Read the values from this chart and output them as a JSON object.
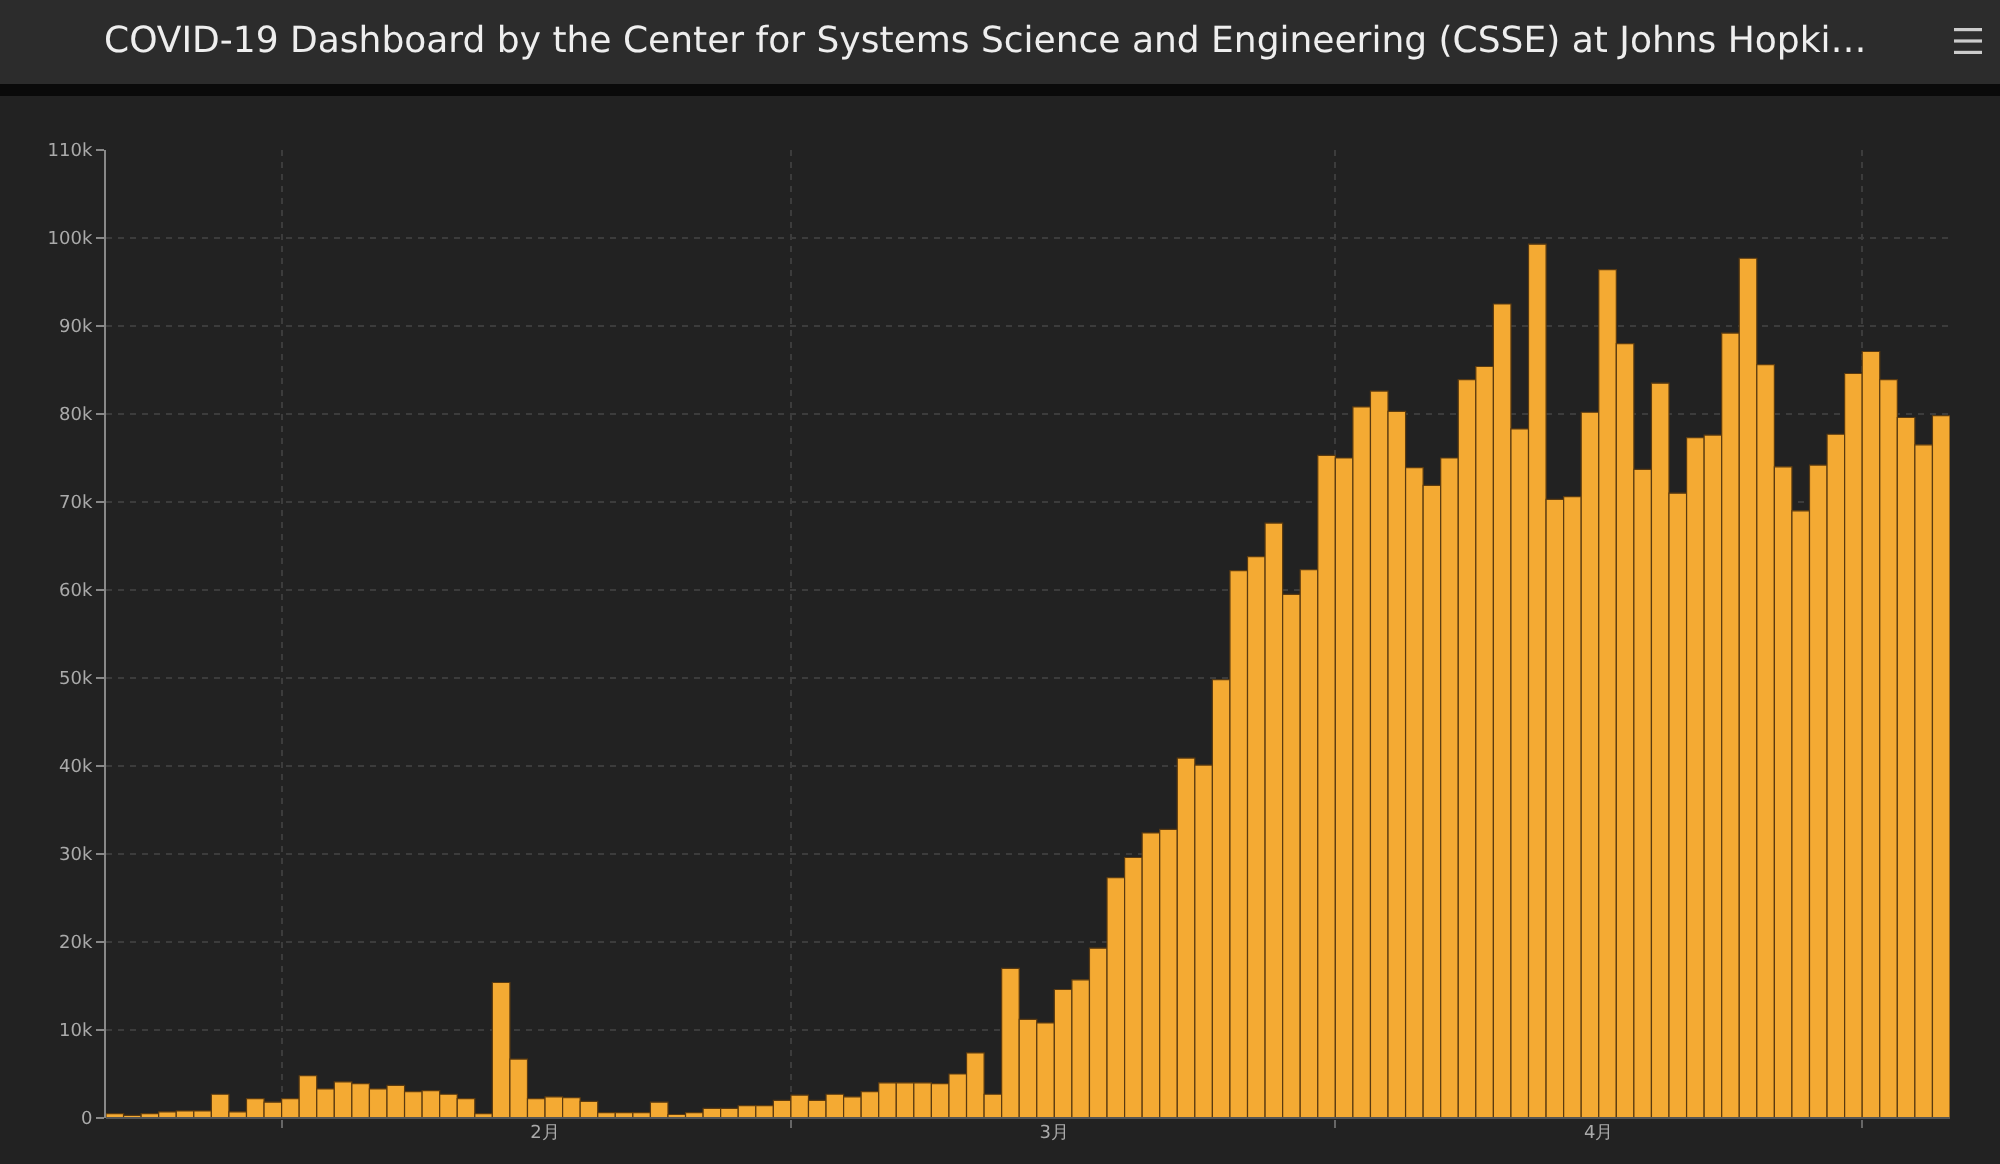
{
  "chart_data": {
    "type": "bar",
    "title": "COVID-19 Dashboard by the Center for Systems Science and Engineering (CSSE) at Johns Hopki…",
    "x": [
      "--01-22",
      "--01-23",
      "--01-24",
      "--01-25",
      "--01-26",
      "--01-27",
      "--01-28",
      "--01-29",
      "--01-30",
      "--01-31",
      "--02-01",
      "--02-02",
      "--02-03",
      "--02-04",
      "--02-05",
      "--02-06",
      "--02-07",
      "--02-08",
      "--02-09",
      "--02-10",
      "--02-11",
      "--02-12",
      "--02-13",
      "--02-14",
      "--02-15",
      "--02-16",
      "--02-17",
      "--02-18",
      "--02-19",
      "--02-20",
      "--02-21",
      "--02-22",
      "--02-23",
      "--02-24",
      "--02-25",
      "--02-26",
      "--02-27",
      "--02-28",
      "--02-29",
      "--03-01",
      "--03-02",
      "--03-03",
      "--03-04",
      "--03-05",
      "--03-06",
      "--03-07",
      "--03-08",
      "--03-09",
      "--03-10",
      "--03-11",
      "--03-12",
      "--03-13",
      "--03-14",
      "--03-15",
      "--03-16",
      "--03-17",
      "--03-18",
      "--03-19",
      "--03-20",
      "--03-21",
      "--03-22",
      "--03-23",
      "--03-24",
      "--03-25",
      "--03-26",
      "--03-27",
      "--03-28",
      "--03-29",
      "--03-30",
      "--03-31",
      "--04-01",
      "--04-02",
      "--04-03",
      "--04-04",
      "--04-05",
      "--04-06",
      "--04-07",
      "--04-08",
      "--04-09",
      "--04-10",
      "--04-11",
      "--04-12",
      "--04-13",
      "--04-14",
      "--04-15",
      "--04-16",
      "--04-17",
      "--04-18",
      "--04-19",
      "--04-20",
      "--04-21",
      "--04-22",
      "--04-23",
      "--04-24",
      "--04-25",
      "--04-26",
      "--04-27",
      "--04-28",
      "--04-29",
      "--04-30",
      "--05-01",
      "--05-02",
      "--05-03",
      "--05-04",
      "--05-05"
    ],
    "values": [
      500,
      300,
      500,
      700,
      800,
      800,
      2700,
      700,
      2200,
      1800,
      2200,
      4800,
      3300,
      4100,
      3900,
      3300,
      3700,
      3000,
      3100,
      2700,
      2200,
      500,
      15400,
      6700,
      2200,
      2400,
      2300,
      1900,
      600,
      600,
      600,
      1800,
      400,
      600,
      1100,
      1100,
      1400,
      1400,
      2000,
      2600,
      2000,
      2700,
      2400,
      3000,
      4000,
      4000,
      4000,
      3900,
      5000,
      7400,
      2700,
      17000,
      11200,
      10800,
      14600,
      15700,
      19300,
      27300,
      29600,
      32400,
      32800,
      40900,
      40100,
      49800,
      62200,
      63800,
      67600,
      59500,
      62300,
      75300,
      75000,
      80800,
      82600,
      80300,
      73900,
      71900,
      75000,
      83900,
      85400,
      92500,
      78300,
      99300,
      70300,
      70600,
      80200,
      96400,
      88000,
      73700,
      83500,
      71000,
      77300,
      77600,
      89200,
      97700,
      85600,
      74000,
      69000,
      74200,
      77700,
      84600,
      87100,
      83900,
      79600,
      76500,
      79800
    ],
    "color": "#f4aa33",
    "xlim": [
      "--01-22",
      "--05-06"
    ],
    "xticks": [
      {
        "value": "--02-01",
        "label": null
      },
      {
        "value": "--02-16",
        "label": "2月"
      },
      {
        "value": "--03-01",
        "label": null
      },
      {
        "value": "--03-16",
        "label": "3月"
      },
      {
        "value": "--04-01",
        "label": null
      },
      {
        "value": "--04-16",
        "label": "4月"
      },
      {
        "value": "--05-01",
        "label": null
      }
    ],
    "ylim": [
      0,
      110000
    ],
    "yticks": [
      0,
      {
        "value": 10000,
        "label": "10k"
      },
      {
        "value": 20000,
        "label": "20k"
      },
      {
        "value": 30000,
        "label": "30k"
      },
      {
        "value": 40000,
        "label": "40k"
      },
      {
        "value": 50000,
        "label": "50k"
      },
      {
        "value": 60000,
        "label": "60k"
      },
      {
        "value": 70000,
        "label": "70k"
      },
      {
        "value": 80000,
        "label": "80k"
      },
      {
        "value": 90000,
        "label": "90k"
      },
      {
        "value": 100000,
        "label": "100k"
      },
      {
        "value": 110000,
        "label": "110k"
      }
    ],
    "grid": true
  }
}
